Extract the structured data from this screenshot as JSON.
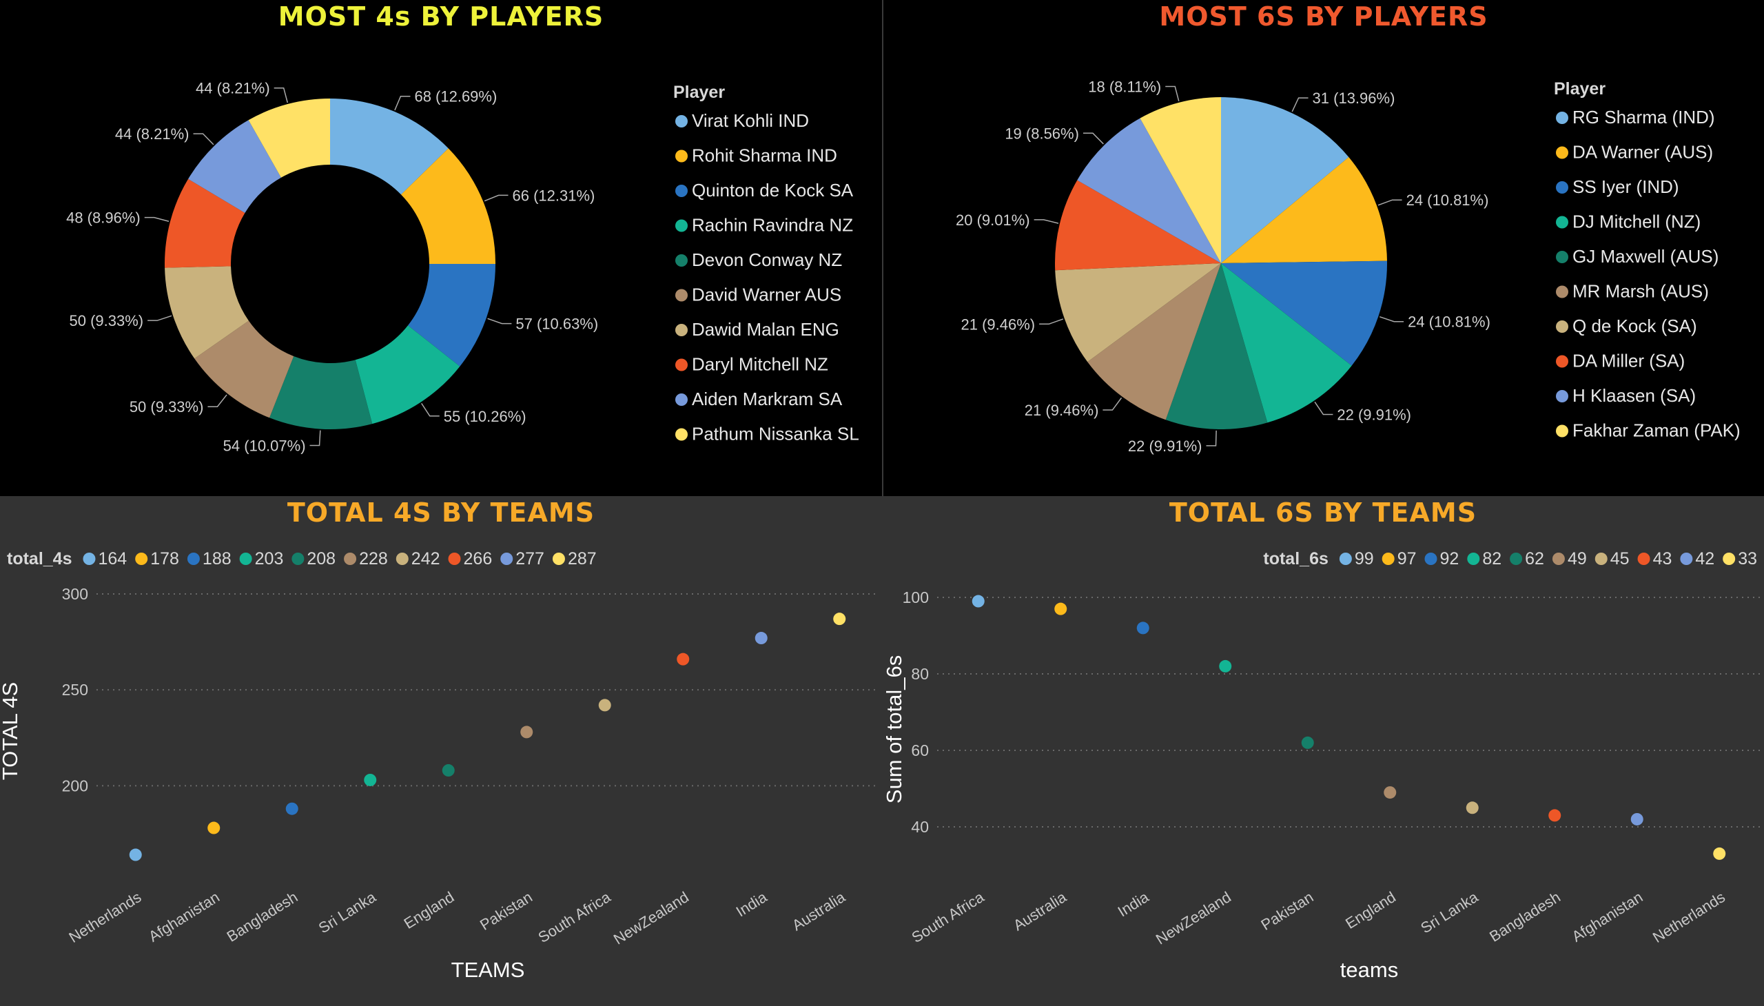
{
  "colors": [
    "#74B3E4",
    "#FDBA1B",
    "#2A74C2",
    "#13B594",
    "#15806A",
    "#AD8B6A",
    "#C9B27D",
    "#EE5727",
    "#779ADB",
    "#FFE166"
  ],
  "panels": {
    "p1": {
      "title": "MOST 4s BY PLAYERS",
      "title_color": "#EEF23A"
    },
    "p2": {
      "title": "MOST 6S BY PLAYERS",
      "title_color": "#F0592E"
    },
    "p3": {
      "title": "TOTAL 4S BY TEAMS",
      "title_color": "#F7A928"
    },
    "p4": {
      "title": "TOTAL 6S BY TEAMS",
      "title_color": "#F7A928"
    }
  },
  "chart_data": [
    {
      "type": "pie",
      "donut": true,
      "title": "MOST 4s BY PLAYERS",
      "legend_title": "Player",
      "legend_position": "right",
      "labels": [
        "Virat Kohli IND",
        "Rohit Sharma IND",
        "Quinton de Kock SA",
        "Rachin Ravindra NZ",
        "Devon Conway NZ",
        "David Warner AUS",
        "Dawid Malan ENG",
        "Daryl Mitchell NZ",
        "Aiden Markram SA",
        "Pathum Nissanka SL"
      ],
      "values": [
        68,
        66,
        57,
        55,
        54,
        50,
        50,
        48,
        44,
        44
      ],
      "data_labels": [
        "68 (12.69%)",
        "66 (12.31%)",
        "57 (10.63%)",
        "55 (10.26%)",
        "54 (10.07%)",
        "50 (9.33%)",
        "50 (9.33%)",
        "48 (8.96%)",
        "44 (8.21%)",
        "44 (8.21%)"
      ]
    },
    {
      "type": "pie",
      "donut": false,
      "title": "MOST 6S BY PLAYERS",
      "legend_title": "Player",
      "legend_position": "right",
      "labels": [
        "RG Sharma (IND)",
        "DA Warner (AUS)",
        "SS Iyer (IND)",
        "DJ Mitchell (NZ)",
        "GJ Maxwell (AUS)",
        "MR Marsh (AUS)",
        "Q de Kock (SA)",
        "DA Miller (SA)",
        "H Klaasen (SA)",
        "Fakhar Zaman (PAK)"
      ],
      "values": [
        31,
        24,
        24,
        22,
        22,
        21,
        21,
        20,
        19,
        18
      ],
      "data_labels": [
        "31 (13.96%)",
        "24 (10.81%)",
        "24 (10.81%)",
        "22 (9.91%)",
        "22 (9.91%)",
        "21 (9.46%)",
        "21 (9.46%)",
        "20 (9.01%)",
        "19 (8.56%)",
        "18 (8.11%)"
      ]
    },
    {
      "type": "scatter",
      "title": "TOTAL 4S BY TEAMS",
      "legend_title": "total_4s",
      "legend_entries": [
        "164",
        "178",
        "188",
        "203",
        "208",
        "228",
        "242",
        "266",
        "277",
        "287"
      ],
      "legend_position": "top-left",
      "xlabel": "TEAMS",
      "ylabel": "TOTAL 4S",
      "categories": [
        "Netherlands",
        "Afghanistan",
        "Bangladesh",
        "Sri Lanka",
        "England",
        "Pakistan",
        "South Africa",
        "NewZealand",
        "India",
        "Australia"
      ],
      "values": [
        164,
        178,
        188,
        203,
        208,
        228,
        242,
        266,
        277,
        287
      ],
      "yticks": [
        "200",
        "250",
        "300"
      ],
      "ylim": [
        157,
        300
      ],
      "grid": true
    },
    {
      "type": "scatter",
      "title": "TOTAL 6S BY TEAMS",
      "legend_title": "total_6s",
      "legend_entries": [
        "99",
        "97",
        "92",
        "82",
        "62",
        "49",
        "45",
        "43",
        "42",
        "33"
      ],
      "legend_position": "top-right",
      "xlabel": "teams",
      "ylabel": "Sum of total_6s",
      "categories": [
        "South Africa",
        "Australia",
        "India",
        "NewZealand",
        "Pakistan",
        "England",
        "Sri Lanka",
        "Bangladesh",
        "Afghanistan",
        "Netherlands"
      ],
      "values": [
        99,
        97,
        92,
        82,
        62,
        49,
        45,
        43,
        42,
        33
      ],
      "yticks": [
        "40",
        "60",
        "80",
        "100"
      ],
      "ylim": [
        31,
        100
      ],
      "grid": true
    }
  ]
}
